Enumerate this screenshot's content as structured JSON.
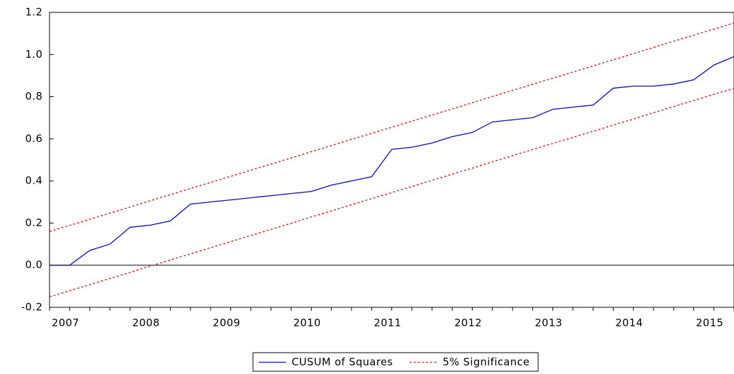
{
  "chart_data": {
    "type": "line",
    "categories": [
      null,
      "2007",
      null,
      null,
      null,
      "2008",
      null,
      null,
      null,
      "2009",
      null,
      null,
      null,
      "2010",
      null,
      null,
      null,
      "2011",
      null,
      null,
      null,
      "2012",
      null,
      null,
      null,
      "2013",
      null,
      null,
      null,
      "2014",
      null,
      null,
      null,
      "2015",
      null
    ],
    "series": [
      {
        "name": "CUSUM of Squares",
        "color": "#0000ff",
        "dashed": false,
        "values": [
          0.0,
          0.0,
          0.07,
          0.1,
          0.18,
          0.19,
          0.21,
          0.29,
          0.3,
          0.31,
          0.32,
          0.33,
          0.34,
          0.35,
          0.38,
          0.4,
          0.42,
          0.55,
          0.56,
          0.58,
          0.61,
          0.63,
          0.68,
          0.69,
          0.7,
          0.74,
          0.75,
          0.76,
          0.84,
          0.85,
          0.85,
          0.86,
          0.88,
          0.95,
          0.99
        ]
      },
      {
        "name": "5% Significance",
        "color": "#ff0000",
        "dashed": true,
        "values": [
          0.16,
          0.189,
          0.218,
          0.247,
          0.276,
          0.306,
          0.335,
          0.364,
          0.393,
          0.422,
          0.451,
          0.48,
          0.509,
          0.539,
          0.568,
          0.597,
          0.626,
          0.655,
          0.684,
          0.713,
          0.742,
          0.771,
          0.801,
          0.83,
          0.859,
          0.888,
          0.917,
          0.946,
          0.975,
          1.004,
          1.034,
          1.063,
          1.092,
          1.121,
          1.15
        ],
        "lower": [
          -0.15,
          -0.121,
          -0.092,
          -0.063,
          -0.034,
          -0.004,
          0.025,
          0.054,
          0.083,
          0.112,
          0.141,
          0.17,
          0.199,
          0.229,
          0.258,
          0.287,
          0.316,
          0.345,
          0.374,
          0.403,
          0.432,
          0.461,
          0.491,
          0.52,
          0.549,
          0.578,
          0.607,
          0.636,
          0.665,
          0.694,
          0.724,
          0.753,
          0.782,
          0.811,
          0.84
        ]
      }
    ],
    "ylim": [
      -0.2,
      1.2
    ],
    "yticks": [
      -0.2,
      {
        "value": 0,
        "label": "0.0"
      },
      0.2,
      0.4,
      0.6,
      0.8,
      {
        "value": 1,
        "label": "1.0"
      },
      1.2
    ],
    "zero_line": true,
    "grid": false,
    "legend": "bottom"
  }
}
